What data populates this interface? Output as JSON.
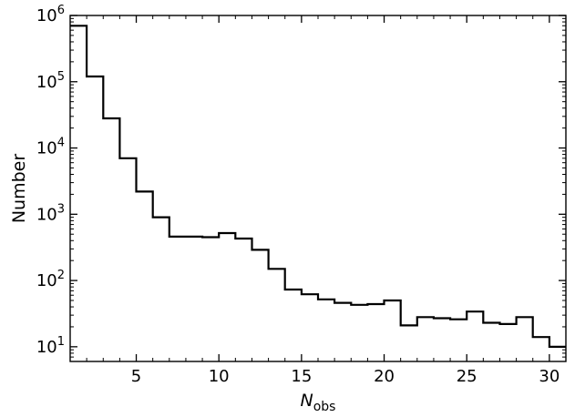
{
  "chart_data": {
    "type": "histogram",
    "title": "",
    "xlabel": "N",
    "xlabel_subscript": "obs",
    "ylabel": "Number",
    "xscale": "linear",
    "yscale": "log",
    "xlim": [
      1,
      31
    ],
    "ylim": [
      6,
      1000000
    ],
    "x_ticks": [
      5,
      10,
      15,
      20,
      25,
      30
    ],
    "x_tick_labels": [
      "5",
      "10",
      "15",
      "20",
      "25",
      "30"
    ],
    "y_tick_labels": [
      {
        "value": 10,
        "base": "10",
        "exp": "1"
      },
      {
        "value": 100,
        "base": "10",
        "exp": "2"
      },
      {
        "value": 1000,
        "base": "10",
        "exp": "3"
      },
      {
        "value": 10000,
        "base": "10",
        "exp": "4"
      },
      {
        "value": 100000,
        "base": "10",
        "exp": "5"
      },
      {
        "value": 1000000,
        "base": "10",
        "exp": "6"
      }
    ],
    "bin_edges": [
      1,
      2,
      3,
      4,
      5,
      6,
      7,
      8,
      9,
      10,
      11,
      12,
      13,
      14,
      15,
      16,
      17,
      18,
      19,
      20,
      21,
      22,
      23,
      24,
      25,
      26,
      27,
      28,
      29,
      30,
      31
    ],
    "counts": [
      700000,
      120000,
      28000,
      7000,
      2200,
      900,
      460,
      460,
      450,
      520,
      430,
      290,
      150,
      73,
      62,
      52,
      46,
      43,
      44,
      50,
      21,
      28,
      27,
      26,
      34,
      23,
      22,
      28,
      14,
      10
    ],
    "grid": false,
    "legend": "none",
    "line_color": "#000000"
  }
}
